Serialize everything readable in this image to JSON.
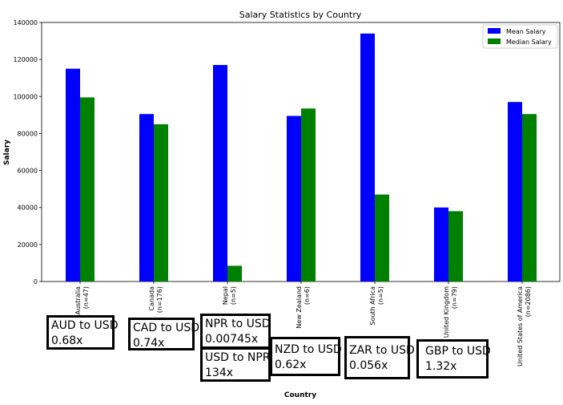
{
  "chart_data": {
    "type": "bar",
    "title": "Salary Statistics by Country",
    "xlabel": "Country",
    "ylabel": "Salary",
    "ylim": [
      0,
      140000
    ],
    "yticks": [
      "0",
      "20000",
      "40000",
      "60000",
      "80000",
      "100000",
      "120000",
      "140000"
    ],
    "categories": [
      [
        "Australia",
        "(n=47)"
      ],
      [
        "Canada",
        "(n=176)"
      ],
      [
        "Nepal",
        "(n=5)"
      ],
      [
        "New Zealand",
        "(n=6)"
      ],
      [
        "South Africa",
        "(n=5)"
      ],
      [
        "United Kingdom",
        "(n=79)"
      ],
      [
        "United States of America",
        "(n=2086)"
      ]
    ],
    "series": [
      {
        "name": "Mean Salary",
        "color": "#0000ff",
        "values": [
          115000,
          90500,
          117000,
          89500,
          134000,
          40000,
          97000
        ]
      },
      {
        "name": "Median Salary",
        "color": "#008000",
        "values": [
          99500,
          85000,
          8500,
          93500,
          47000,
          38000,
          90500
        ]
      }
    ],
    "legend_position": "top-right",
    "grid": false
  },
  "annotations": [
    {
      "lines": [
        "AUD to USD",
        "0.68x"
      ]
    },
    {
      "lines": [
        "CAD to USD",
        "0.74x"
      ]
    },
    {
      "lines": [
        "NPR to USD",
        "0.00745x"
      ]
    },
    {
      "lines": [
        "USD to NPR",
        "134x"
      ]
    },
    {
      "lines": [
        "NZD to USD",
        "0.62x"
      ]
    },
    {
      "lines": [
        "ZAR to USD",
        "0.056x"
      ]
    },
    {
      "lines": [
        "GBP to USD",
        "1.32x"
      ]
    }
  ]
}
